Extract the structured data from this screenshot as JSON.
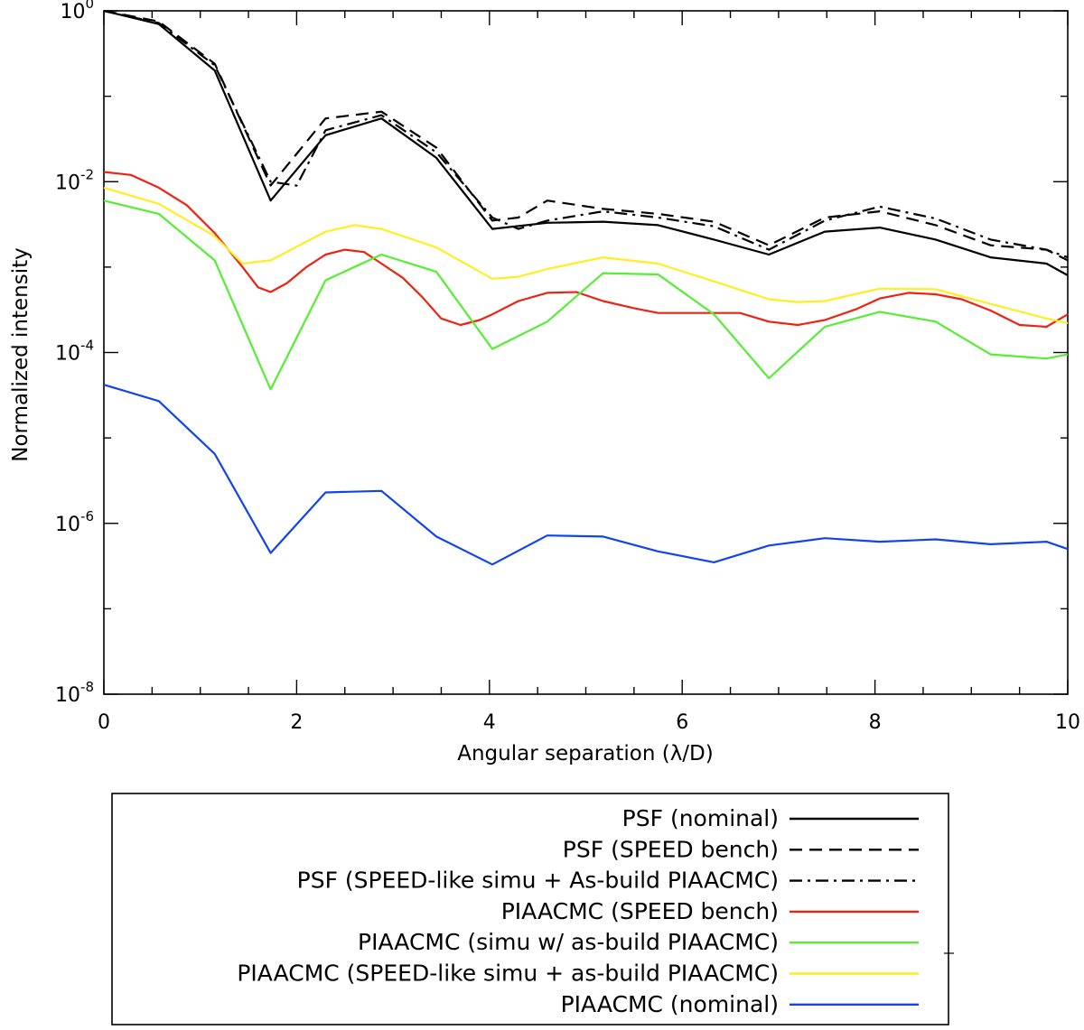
{
  "chart_data": {
    "type": "line",
    "title": "",
    "xlabel": "Angular separation (λ/D)",
    "ylabel": "Normalized intensity",
    "xlim": [
      0,
      10
    ],
    "ylim": [
      1e-08,
      1
    ],
    "yscale": "log",
    "grid": false,
    "legend_position": "bottom",
    "x_ticks": [
      0,
      2,
      4,
      6,
      8,
      10
    ],
    "x_tick_labels": [
      "0",
      "2",
      "4",
      "6",
      "8",
      "10"
    ],
    "y_ticks": [
      {
        "base": "10",
        "exp": "0",
        "value": 1
      },
      {
        "base": "10",
        "exp": "-2",
        "value": 0.01
      },
      {
        "base": "10",
        "exp": "-4",
        "value": 0.0001
      },
      {
        "base": "10",
        "exp": "-6",
        "value": 1e-06
      },
      {
        "base": "10",
        "exp": "-8",
        "value": 1e-08
      }
    ],
    "series": [
      {
        "name": "PSF (nominal)",
        "color": "#000000",
        "dash": "solid",
        "x": [
          0,
          0.57,
          1.15,
          1.73,
          2.3,
          2.88,
          3.45,
          4.03,
          4.6,
          5.18,
          5.75,
          6.33,
          6.9,
          7.48,
          8.05,
          8.63,
          9.2,
          9.78,
          10
        ],
        "y": [
          1.0,
          0.7,
          0.2,
          0.006,
          0.035,
          0.055,
          0.019,
          0.0028,
          0.0033,
          0.0034,
          0.0031,
          0.0021,
          0.0014,
          0.0026,
          0.0029,
          0.0021,
          0.0013,
          0.0011,
          0.0008
        ]
      },
      {
        "name": "PSF (SPEED bench)",
        "color": "#000000",
        "dash": "dashed",
        "x": [
          0,
          0.57,
          1.15,
          1.73,
          2.3,
          2.88,
          3.45,
          4.03,
          4.3,
          4.6,
          5.18,
          5.75,
          6.33,
          6.9,
          7.48,
          8.05,
          8.63,
          9.2,
          9.78,
          10
        ],
        "y": [
          1.0,
          0.75,
          0.24,
          0.009,
          0.055,
          0.066,
          0.025,
          0.0035,
          0.0038,
          0.006,
          0.0048,
          0.0042,
          0.0034,
          0.0018,
          0.0038,
          0.0045,
          0.0031,
          0.0018,
          0.0016,
          0.0012
        ]
      },
      {
        "name": "PSF (SPEED-like simu + As-build PIAACMC)",
        "color": "#000000",
        "dash": "dashdot",
        "x": [
          0,
          0.57,
          1.15,
          1.73,
          2.0,
          2.3,
          2.88,
          3.45,
          4.03,
          4.3,
          4.6,
          5.18,
          5.75,
          6.33,
          6.9,
          7.48,
          8.05,
          8.63,
          9.2,
          9.78,
          10
        ],
        "y": [
          1.0,
          0.72,
          0.23,
          0.01,
          0.009,
          0.04,
          0.06,
          0.022,
          0.0038,
          0.0028,
          0.0035,
          0.0045,
          0.0038,
          0.003,
          0.0016,
          0.0035,
          0.0051,
          0.0037,
          0.0021,
          0.0016,
          0.0013
        ]
      },
      {
        "name": "PIAACMC (SPEED bench)",
        "color": "#ee2211",
        "dash": "solid",
        "x": [
          0,
          0.28,
          0.57,
          0.86,
          1.15,
          1.44,
          1.6,
          1.73,
          1.9,
          2.1,
          2.3,
          2.5,
          2.7,
          2.88,
          3.1,
          3.3,
          3.5,
          3.7,
          3.9,
          4.03,
          4.3,
          4.6,
          4.9,
          5.18,
          5.5,
          5.75,
          6.1,
          6.33,
          6.6,
          6.9,
          7.2,
          7.48,
          7.8,
          8.05,
          8.35,
          8.63,
          8.9,
          9.2,
          9.5,
          9.78,
          10
        ],
        "y": [
          0.013,
          0.012,
          0.0085,
          0.0053,
          0.0025,
          0.001,
          0.00058,
          0.00051,
          0.00065,
          0.001,
          0.0014,
          0.0016,
          0.0015,
          0.0011,
          0.00075,
          0.00045,
          0.00025,
          0.00021,
          0.00024,
          0.00028,
          0.0004,
          0.0005,
          0.00051,
          0.0004,
          0.00033,
          0.00029,
          0.00029,
          0.00029,
          0.00029,
          0.00023,
          0.00021,
          0.00024,
          0.00032,
          0.00043,
          0.0005,
          0.00048,
          0.00042,
          0.00031,
          0.00021,
          0.0002,
          0.00028
        ]
      },
      {
        "name": "PIAACMC (simu w/ as-build PIAACMC)",
        "color": "#55ee33",
        "dash": "solid",
        "x": [
          0,
          0.57,
          1.15,
          1.73,
          2.3,
          2.88,
          3.45,
          4.03,
          4.6,
          5.18,
          5.75,
          6.33,
          6.9,
          7.48,
          8.05,
          8.63,
          9.2,
          9.78,
          10
        ],
        "y": [
          0.006,
          0.0042,
          0.0012,
          3.7e-05,
          0.0007,
          0.0014,
          0.00088,
          0.00011,
          0.00023,
          0.00085,
          0.00082,
          0.00028,
          5e-05,
          0.0002,
          0.0003,
          0.00023,
          9.5e-05,
          8.5e-05,
          9.5e-05
        ]
      },
      {
        "name": "PIAACMC (SPEED-like simu + as-build PIAACMC)",
        "color": "#ffee22",
        "dash": "solid",
        "x": [
          0,
          0.57,
          1.15,
          1.44,
          1.73,
          2.3,
          2.6,
          2.88,
          3.45,
          4.03,
          4.3,
          4.6,
          5.18,
          5.75,
          6.33,
          6.9,
          7.2,
          7.48,
          8.05,
          8.63,
          9.2,
          9.78,
          10
        ],
        "y": [
          0.0085,
          0.0055,
          0.0023,
          0.0011,
          0.0012,
          0.0026,
          0.0031,
          0.0028,
          0.0017,
          0.00073,
          0.00077,
          0.00095,
          0.0013,
          0.0011,
          0.00068,
          0.00042,
          0.00039,
          0.0004,
          0.00056,
          0.00055,
          0.00037,
          0.00025,
          0.00022
        ]
      },
      {
        "name": "PIAACMC (nominal)",
        "color": "#1144ee",
        "dash": "solid",
        "x": [
          0,
          0.57,
          1.15,
          1.73,
          2.3,
          2.88,
          3.45,
          4.03,
          4.6,
          5.18,
          5.75,
          6.33,
          6.9,
          7.48,
          8.05,
          8.63,
          9.2,
          9.78,
          10
        ],
        "y": [
          4.2e-05,
          2.7e-05,
          6.5e-06,
          4.5e-07,
          2.3e-06,
          2.4e-06,
          7e-07,
          3.3e-07,
          7.2e-07,
          7e-07,
          4.7e-07,
          3.5e-07,
          5.5e-07,
          6.7e-07,
          6.1e-07,
          6.5e-07,
          5.7e-07,
          6.1e-07,
          5e-07
        ]
      }
    ]
  }
}
